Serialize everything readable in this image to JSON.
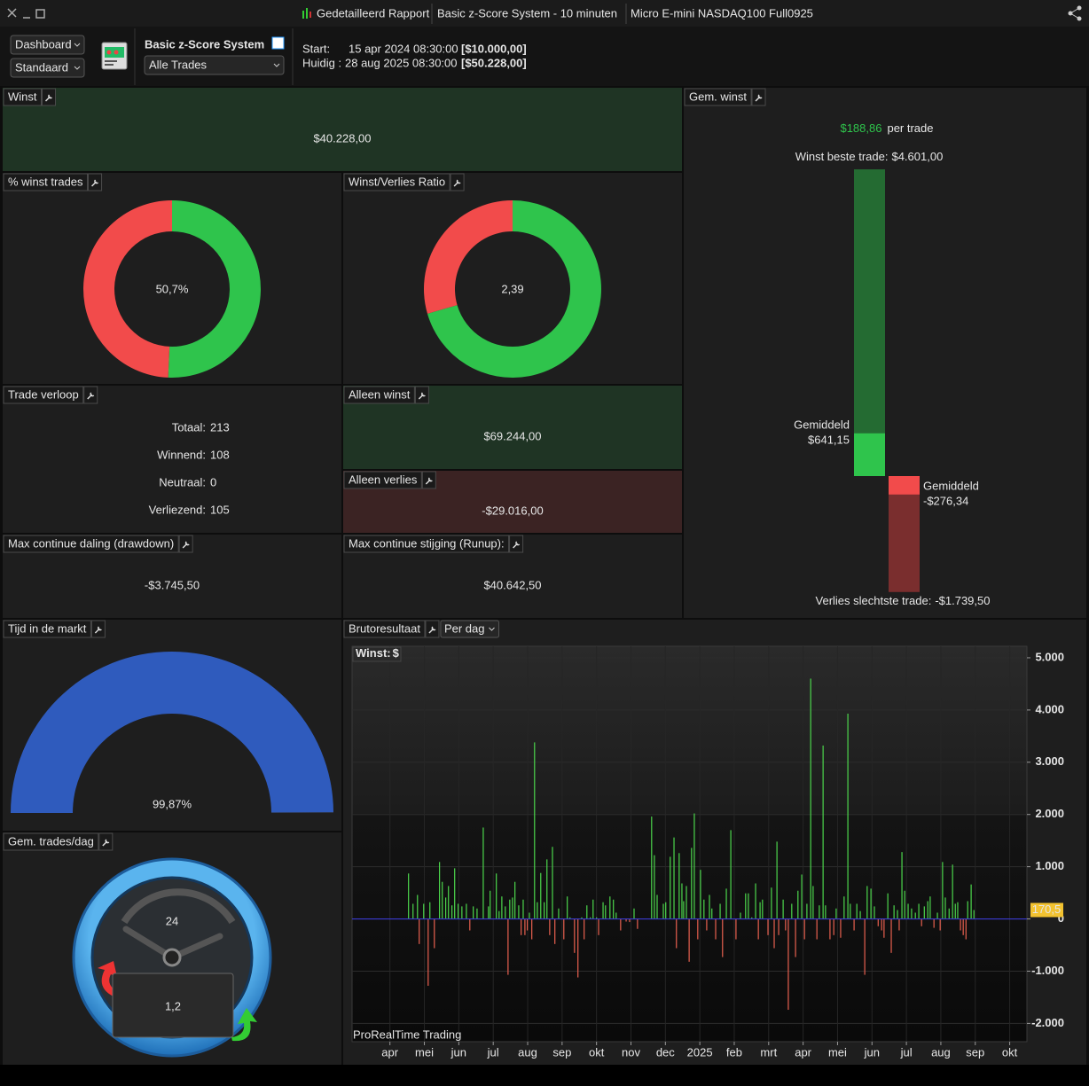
{
  "window": {
    "tabs": [
      "Gedetailleerd Rapport",
      "Basic z-Score System - 10 minuten",
      "Micro E-mini NASDAQ100 Full0925"
    ]
  },
  "toolbar": {
    "dashboard": "Dashboard",
    "layout": "Standaard",
    "system": "Basic z-Score System",
    "filter": "Alle Trades",
    "start": {
      "label": "Start:",
      "date": "15 apr 2024 08:30:00",
      "capital": "[$10.000,00]"
    },
    "current": {
      "label": "Huidig :",
      "date": "28 aug 2025 08:30:00",
      "capital": "[$50.228,00]"
    }
  },
  "panels": {
    "profit": {
      "title": "Winst",
      "value": "$40.228,00"
    },
    "win_rate": {
      "title": "% winst trades",
      "value": {
        "value": 50.7,
        "label": "50,7%"
      }
    },
    "win_loss_ratio": {
      "title": "Winst/Verlies Ratio",
      "value": {
        "value": 2.39,
        "label": "2,39"
      }
    },
    "trades": {
      "title": "Trade verloop",
      "rows": [
        {
          "label": "Totaal:",
          "value": 213
        },
        {
          "label": "Winnend:",
          "value": 108
        },
        {
          "label": "Neutraal:",
          "value": 0
        },
        {
          "label": "Verliezend:",
          "value": 105
        }
      ]
    },
    "gross_profit": {
      "title": "Alleen winst",
      "value": "$69.244,00"
    },
    "gross_loss": {
      "title": "Alleen verlies",
      "value": "-$29.016,00"
    },
    "drawdown": {
      "title": "Max continue daling (drawdown)",
      "value": "-$3.745,50"
    },
    "runup": {
      "title": "Max continue stijging (Runup):",
      "value": "$40.642,50"
    },
    "avg_profit": {
      "title": "Gem. winst",
      "per_trade": "$188,86",
      "per_trade_suffix": "per trade",
      "best": {
        "label": "Winst beste trade:",
        "value": 4601,
        "value_label": "$4.601,00"
      },
      "avg_win": {
        "label": "Gemiddeld",
        "value": 641.15,
        "value_label": "$641,15"
      },
      "avg_loss": {
        "label": "Gemiddeld",
        "value": -276.34,
        "value_label": "-$276,34"
      },
      "worst": {
        "label": "Verlies slechtste trade:",
        "value": -1739.5,
        "value_label": "-$1.739,50"
      }
    },
    "time_in_market": {
      "title": "Tijd in de markt",
      "value": {
        "value": 99.87,
        "label": "99,87%"
      }
    },
    "trades_per_day": {
      "title": "Gem. trades/dag",
      "clock": "24",
      "value": "1,2"
    }
  },
  "chart_data": {
    "type": "bar",
    "panel_title": "Brutoresultaat",
    "period": "Per dag",
    "series_label": "Winst:",
    "unit": "$",
    "watermark": "ProRealTime Trading",
    "x": [
      0.54,
      0.67,
      0.8,
      0.85,
      0.98,
      1.11,
      1.16,
      1.29,
      1.44,
      1.52,
      1.62,
      1.7,
      1.8,
      1.88,
      1.98,
      2.09,
      2.22,
      2.32,
      2.42,
      2.53,
      2.71,
      2.86,
      2.91,
      3.09,
      3.17,
      3.25,
      3.35,
      3.43,
      3.48,
      3.56,
      3.63,
      3.74,
      3.81,
      3.87,
      3.92,
      3.99,
      4.05,
      4.12,
      4.2,
      4.28,
      4.38,
      4.48,
      4.56,
      4.64,
      4.72,
      4.79,
      4.9,
      5.05,
      5.15,
      5.23,
      5.36,
      5.46,
      5.57,
      5.64,
      5.72,
      5.82,
      5.9,
      6.0,
      6.06,
      6.19,
      6.26,
      6.39,
      6.49,
      6.57,
      6.7,
      6.86,
      6.96,
      7.09,
      7.19,
      7.6,
      7.68,
      7.76,
      7.94,
      8.01,
      8.14,
      8.25,
      8.32,
      8.4,
      8.48,
      8.53,
      8.61,
      8.69,
      8.76,
      8.84,
      8.94,
      9.02,
      9.12,
      9.2,
      9.28,
      9.35,
      9.46,
      9.59,
      9.66,
      9.77,
      9.9,
      10.05,
      10.18,
      10.33,
      10.41,
      10.51,
      10.62,
      10.7,
      10.75,
      10.82,
      10.98,
      11.08,
      11.16,
      11.24,
      11.29,
      11.42,
      11.49,
      11.57,
      11.67,
      11.78,
      11.85,
      11.96,
      12.04,
      12.11,
      12.22,
      12.29,
      12.4,
      12.47,
      12.58,
      12.65,
      12.78,
      12.89,
      12.96,
      13.09,
      13.19,
      13.3,
      13.37,
      13.48,
      13.56,
      13.66,
      13.79,
      13.86,
      13.97,
      14.07,
      14.18,
      14.28,
      14.35,
      14.46,
      14.56,
      14.64,
      14.74,
      14.79,
      14.87,
      14.95,
      15.05,
      15.15,
      15.26,
      15.36,
      15.44,
      15.52,
      15.62,
      15.69,
      15.8,
      15.9,
      15.98,
      16.05,
      16.13,
      16.24,
      16.34,
      16.42,
      16.49,
      16.57,
      16.65,
      16.73,
      16.78,
      16.88,
      16.96
    ],
    "values": [
      870,
      290,
      460,
      -480,
      290,
      -1280,
      320,
      -560,
      1090,
      710,
      410,
      630,
      260,
      970,
      290,
      240,
      290,
      -220,
      240,
      200,
      1750,
      240,
      540,
      870,
      150,
      430,
      240,
      -1070,
      370,
      410,
      710,
      260,
      -310,
      370,
      -310,
      -220,
      120,
      -390,
      3380,
      320,
      880,
      320,
      1140,
      -310,
      1380,
      -480,
      200,
      -390,
      430,
      30,
      -650,
      -1120,
      30,
      -390,
      260,
      30,
      370,
      30,
      -310,
      320,
      260,
      430,
      370,
      120,
      -220,
      -50,
      -60,
      200,
      -190,
      1960,
      1220,
      460,
      290,
      320,
      1190,
      1560,
      -560,
      1260,
      680,
      340,
      630,
      -820,
      1360,
      2020,
      -390,
      940,
      370,
      -220,
      460,
      200,
      -390,
      290,
      -730,
      580,
      1700,
      -390,
      120,
      490,
      490,
      30,
      680,
      -390,
      320,
      370,
      -310,
      600,
      -560,
      1480,
      -310,
      370,
      -220,
      -1739.5,
      290,
      -730,
      540,
      850,
      -390,
      290,
      4601,
      630,
      -390,
      260,
      3320,
      260,
      -390,
      -310,
      200,
      -360,
      430,
      3930,
      290,
      -220,
      290,
      150,
      -1070,
      630,
      580,
      240,
      -140,
      -220,
      -360,
      490,
      -650,
      260,
      170,
      -220,
      1280,
      540,
      290,
      200,
      120,
      290,
      -140,
      240,
      340,
      430,
      -170,
      120,
      -220,
      1090,
      410,
      200,
      1040,
      290,
      320,
      -220,
      -310,
      -390,
      340,
      660,
      170
    ],
    "positive_color": "#4cd64c",
    "negative_color": "#e8604f",
    "zero_line_color": "#3a3ad0",
    "xlim": [
      -1.1,
      18.5
    ],
    "xticks": [
      {
        "value": 0,
        "label": "apr"
      },
      {
        "value": 1,
        "label": "mei"
      },
      {
        "value": 2,
        "label": "jun"
      },
      {
        "value": 3,
        "label": "jul"
      },
      {
        "value": 4,
        "label": "aug"
      },
      {
        "value": 5,
        "label": "sep"
      },
      {
        "value": 6,
        "label": "okt"
      },
      {
        "value": 7,
        "label": "nov"
      },
      {
        "value": 8,
        "label": "dec"
      },
      {
        "value": 9,
        "label": "2025"
      },
      {
        "value": 10,
        "label": "feb"
      },
      {
        "value": 11,
        "label": "mrt"
      },
      {
        "value": 12,
        "label": "apr"
      },
      {
        "value": 13,
        "label": "mei"
      },
      {
        "value": 14,
        "label": "jun"
      },
      {
        "value": 15,
        "label": "jul"
      },
      {
        "value": 16,
        "label": "aug"
      },
      {
        "value": 17,
        "label": "sep"
      },
      {
        "value": 18,
        "label": "okt"
      }
    ],
    "ylim": [
      -2350,
      5220
    ],
    "yticks": [
      {
        "value": -2000,
        "label": "-2.000"
      },
      {
        "value": -1000,
        "label": "-1.000"
      },
      0,
      {
        "value": 1000,
        "label": "1.000"
      },
      {
        "value": 2000,
        "label": "2.000"
      },
      {
        "value": 3000,
        "label": "3.000"
      },
      {
        "value": 4000,
        "label": "4.000"
      },
      {
        "value": 5000,
        "label": "5.000"
      }
    ],
    "last_value": {
      "value": 170.5,
      "label": "170,5"
    }
  }
}
